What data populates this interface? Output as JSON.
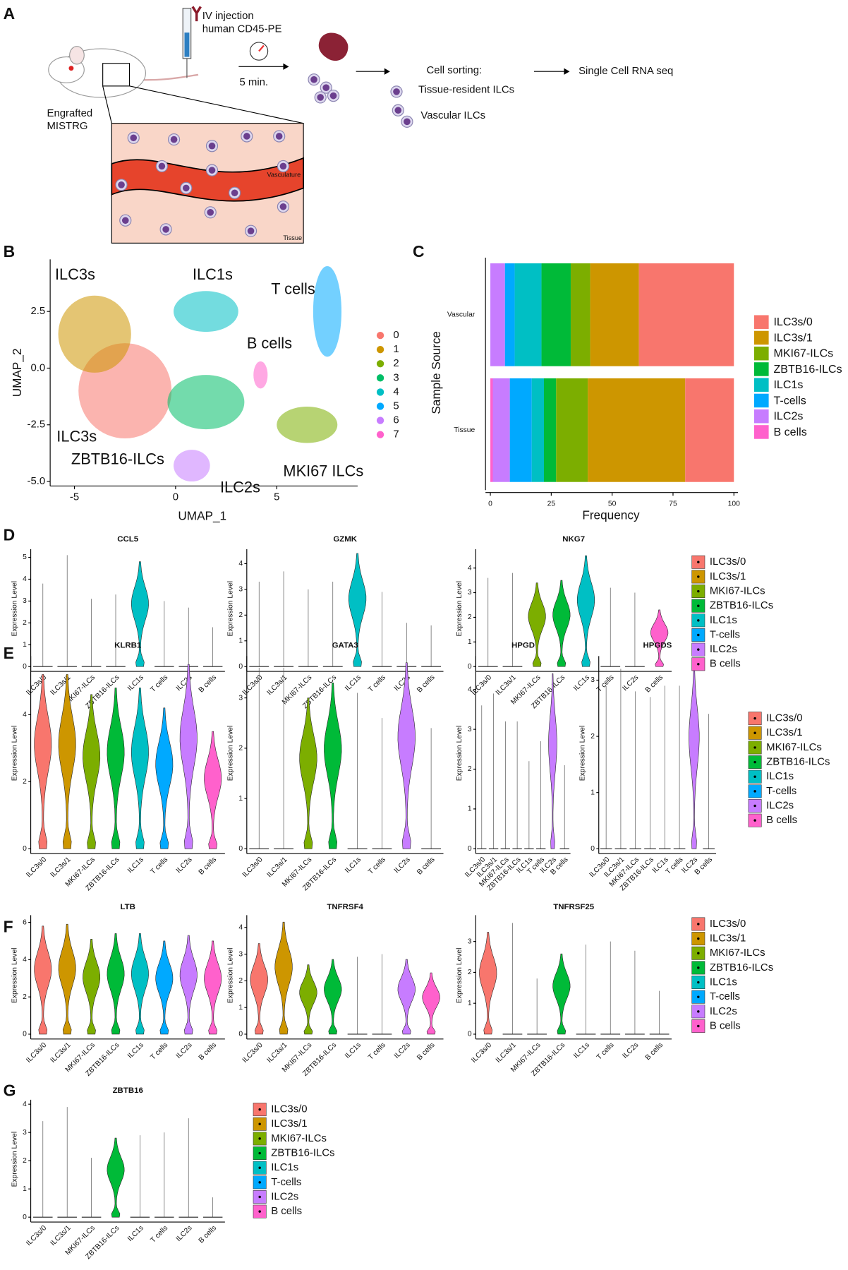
{
  "panel_labels": [
    "A",
    "B",
    "C",
    "D",
    "E",
    "F",
    "G"
  ],
  "diagram": {
    "injection": [
      "IV injection",
      "human CD45-PE"
    ],
    "time": "5 min.",
    "mouse": [
      "Engrafted",
      "MISTRG"
    ],
    "sorting_title": "Cell sorting:",
    "sorted": [
      "Tissue-resident ILCs",
      "Vascular ILCs"
    ],
    "output": "Single Cell RNA seq",
    "vessel_labels": [
      "Vasculature",
      "Tissue"
    ]
  },
  "cell_types": {
    "names": [
      "ILC3s/0",
      "ILC3s/1",
      "MKI67-ILCs",
      "ZBTB16-ILCs",
      "ILC1s",
      "T-cells",
      "ILC2s",
      "B cells"
    ],
    "colors": [
      "#f8766d",
      "#cd9600",
      "#7cae00",
      "#00ba38",
      "#00bfc4",
      "#00a9ff",
      "#c77cff",
      "#ff61cc"
    ]
  },
  "violin_categories": [
    "ILC3s/0",
    "ILC3s/1",
    "MKI67-ILCs",
    "ZBTB16-ILCs",
    "ILC1s",
    "T cells",
    "ILC2s",
    "B cells"
  ],
  "violin_ylabel": "Expression Level",
  "chart_data": [
    {
      "type": "scatter",
      "xlabel": "UMAP_1",
      "ylabel": "UMAP_2",
      "xlim": [
        -6.2,
        9
      ],
      "ylim": [
        -5.2,
        4.8
      ],
      "xticks": [
        -5,
        0,
        5
      ],
      "yticks": [
        {
          "value": -5,
          "label": "-5.0"
        },
        {
          "value": -2.5,
          "label": "-2.5"
        },
        {
          "value": 0,
          "label": "0.0"
        },
        {
          "value": 2.5,
          "label": "2.5"
        }
      ],
      "annotations": [
        "ILC3s",
        "ILC1s",
        "T cells",
        "B cells",
        "ILC3s",
        "ZBTB16-ILCs",
        "MKI67 ILCs",
        "ILC2s"
      ],
      "series": [
        {
          "name": "0",
          "color": "#f8766d",
          "x": [
            -2.5
          ],
          "y": [
            -1
          ]
        },
        {
          "name": "1",
          "color": "#cd9600",
          "x": [
            -4
          ],
          "y": [
            1.5
          ]
        },
        {
          "name": "2",
          "color": "#7cae00",
          "x": [
            6.5
          ],
          "y": [
            -2.5
          ]
        },
        {
          "name": "3",
          "color": "#00be67",
          "x": [
            1.5
          ],
          "y": [
            -1.5
          ]
        },
        {
          "name": "4",
          "color": "#00bfc4",
          "x": [
            1.5
          ],
          "y": [
            2.5
          ]
        },
        {
          "name": "5",
          "color": "#00a9ff",
          "x": [
            7.5
          ],
          "y": [
            2.5
          ]
        },
        {
          "name": "6",
          "color": "#c77cff",
          "x": [
            0.8
          ],
          "y": [
            -4.3
          ]
        },
        {
          "name": "7",
          "color": "#ff61cc",
          "x": [
            4.2
          ],
          "y": [
            -0.3
          ]
        }
      ]
    },
    {
      "type": "bar",
      "orientation": "horizontal",
      "stacked": true,
      "categories": [
        "Vascular",
        "Tissue"
      ],
      "xlabel": "Frequency",
      "ylabel": "Sample Source",
      "xlim": [
        0,
        100
      ],
      "xticks": [
        0,
        25,
        50,
        75,
        100
      ],
      "series": [
        {
          "name": "ILC3s/0",
          "color": "#f8766d",
          "values": [
            39,
            20
          ]
        },
        {
          "name": "ILC3s/1",
          "color": "#cd9600",
          "values": [
            20,
            40
          ]
        },
        {
          "name": "MKI67-ILCs",
          "color": "#7cae00",
          "values": [
            8,
            13
          ]
        },
        {
          "name": "ZBTB16-ILCs",
          "color": "#00ba38",
          "values": [
            12,
            5
          ]
        },
        {
          "name": "ILC1s",
          "color": "#00bfc4",
          "values": [
            11,
            5
          ]
        },
        {
          "name": "T-cells",
          "color": "#00a9ff",
          "values": [
            4,
            9
          ]
        },
        {
          "name": "ILC2s",
          "color": "#c77cff",
          "values": [
            6,
            7
          ]
        },
        {
          "name": "B cells",
          "color": "#ff61cc",
          "values": [
            0,
            1
          ]
        }
      ]
    },
    {
      "type": "violin",
      "title": "CCL5",
      "ylim": [
        0,
        5.3
      ],
      "yticks": [
        0,
        1,
        2,
        3,
        4,
        5
      ],
      "values": [
        3.8,
        5.1,
        3.1,
        3.3,
        4.8,
        3,
        2.7,
        1.8
      ],
      "filled": [
        false,
        false,
        false,
        false,
        true,
        false,
        false,
        false
      ]
    },
    {
      "type": "violin",
      "title": "GZMK",
      "ylim": [
        0,
        4.5
      ],
      "yticks": [
        0,
        1,
        2,
        3,
        4
      ],
      "values": [
        3.3,
        3.7,
        3,
        3.3,
        4.4,
        2.9,
        1.7,
        1.6
      ],
      "filled": [
        false,
        false,
        false,
        false,
        true,
        false,
        false,
        false
      ]
    },
    {
      "type": "violin",
      "title": "NKG7",
      "ylim": [
        0,
        4.7
      ],
      "yticks": [
        0,
        1,
        2,
        3,
        4
      ],
      "values": [
        3.6,
        3.8,
        3.4,
        3.5,
        4.5,
        3.2,
        3,
        2.3
      ],
      "filled": [
        false,
        false,
        true,
        true,
        true,
        false,
        false,
        true
      ]
    },
    {
      "type": "violin",
      "title": "KLRB1",
      "ylim": [
        0,
        5.7
      ],
      "yticks": [
        0,
        2,
        4
      ],
      "values": [
        5.2,
        5.2,
        4.6,
        4.8,
        4.8,
        4.2,
        5.5,
        3.5
      ],
      "filled": [
        true,
        true,
        true,
        true,
        true,
        true,
        true,
        true
      ]
    },
    {
      "type": "violin",
      "title": "GATA3",
      "ylim": [
        0,
        3.8
      ],
      "yticks": [
        0,
        1,
        2,
        3
      ],
      "values": [
        3.6,
        3.6,
        3,
        3.3,
        3.1,
        2.6,
        3.7,
        2.4
      ],
      "filled": [
        false,
        false,
        true,
        true,
        false,
        false,
        true,
        false
      ]
    },
    {
      "type": "violin",
      "title": "HPGD",
      "ylim": [
        0,
        4.8
      ],
      "yticks": [
        0,
        1,
        2,
        3,
        4
      ],
      "values": [
        3.6,
        3.9,
        3.2,
        3.2,
        2.2,
        2.7,
        4.4,
        2.1
      ],
      "filled": [
        false,
        false,
        false,
        false,
        false,
        false,
        true,
        false
      ]
    },
    {
      "type": "violin",
      "title": "HPGDS",
      "ylim": [
        0,
        3.4
      ],
      "yticks": [
        0,
        1,
        2,
        3
      ],
      "values": [
        2.9,
        3.2,
        2.8,
        2.7,
        2.9,
        2.9,
        3.3,
        2.4
      ],
      "filled": [
        false,
        false,
        false,
        false,
        false,
        false,
        true,
        false
      ]
    },
    {
      "type": "violin",
      "title": "LTB",
      "ylim": [
        0,
        6.3
      ],
      "yticks": [
        0,
        2,
        4,
        6
      ],
      "values": [
        5.8,
        5.9,
        5.1,
        5.4,
        5.4,
        5,
        5.3,
        5
      ],
      "filled": [
        true,
        true,
        true,
        true,
        true,
        true,
        true,
        true
      ]
    },
    {
      "type": "violin",
      "title": "TNFRSF4",
      "ylim": [
        0,
        4.4
      ],
      "yticks": [
        0,
        1,
        2,
        3,
        4
      ],
      "values": [
        3.4,
        4.2,
        2.6,
        2.8,
        2.9,
        3,
        2.8,
        2.3
      ],
      "filled": [
        true,
        true,
        true,
        true,
        false,
        false,
        true,
        true
      ]
    },
    {
      "type": "violin",
      "title": "TNFRSF25",
      "ylim": [
        0,
        3.8
      ],
      "yticks": [
        0,
        1,
        2,
        3
      ],
      "values": [
        3.3,
        3.6,
        1.8,
        2.6,
        2.9,
        3,
        2.7,
        1.4
      ],
      "filled": [
        true,
        false,
        false,
        true,
        false,
        false,
        false,
        false
      ]
    },
    {
      "type": "violin",
      "title": "ZBTB16",
      "ylim": [
        0,
        4.1
      ],
      "yticks": [
        0,
        1,
        2,
        3,
        4
      ],
      "values": [
        3.4,
        3.9,
        2.1,
        2.8,
        2.9,
        3,
        3.5,
        0.7
      ],
      "filled": [
        false,
        false,
        false,
        true,
        false,
        false,
        false,
        false
      ]
    }
  ]
}
